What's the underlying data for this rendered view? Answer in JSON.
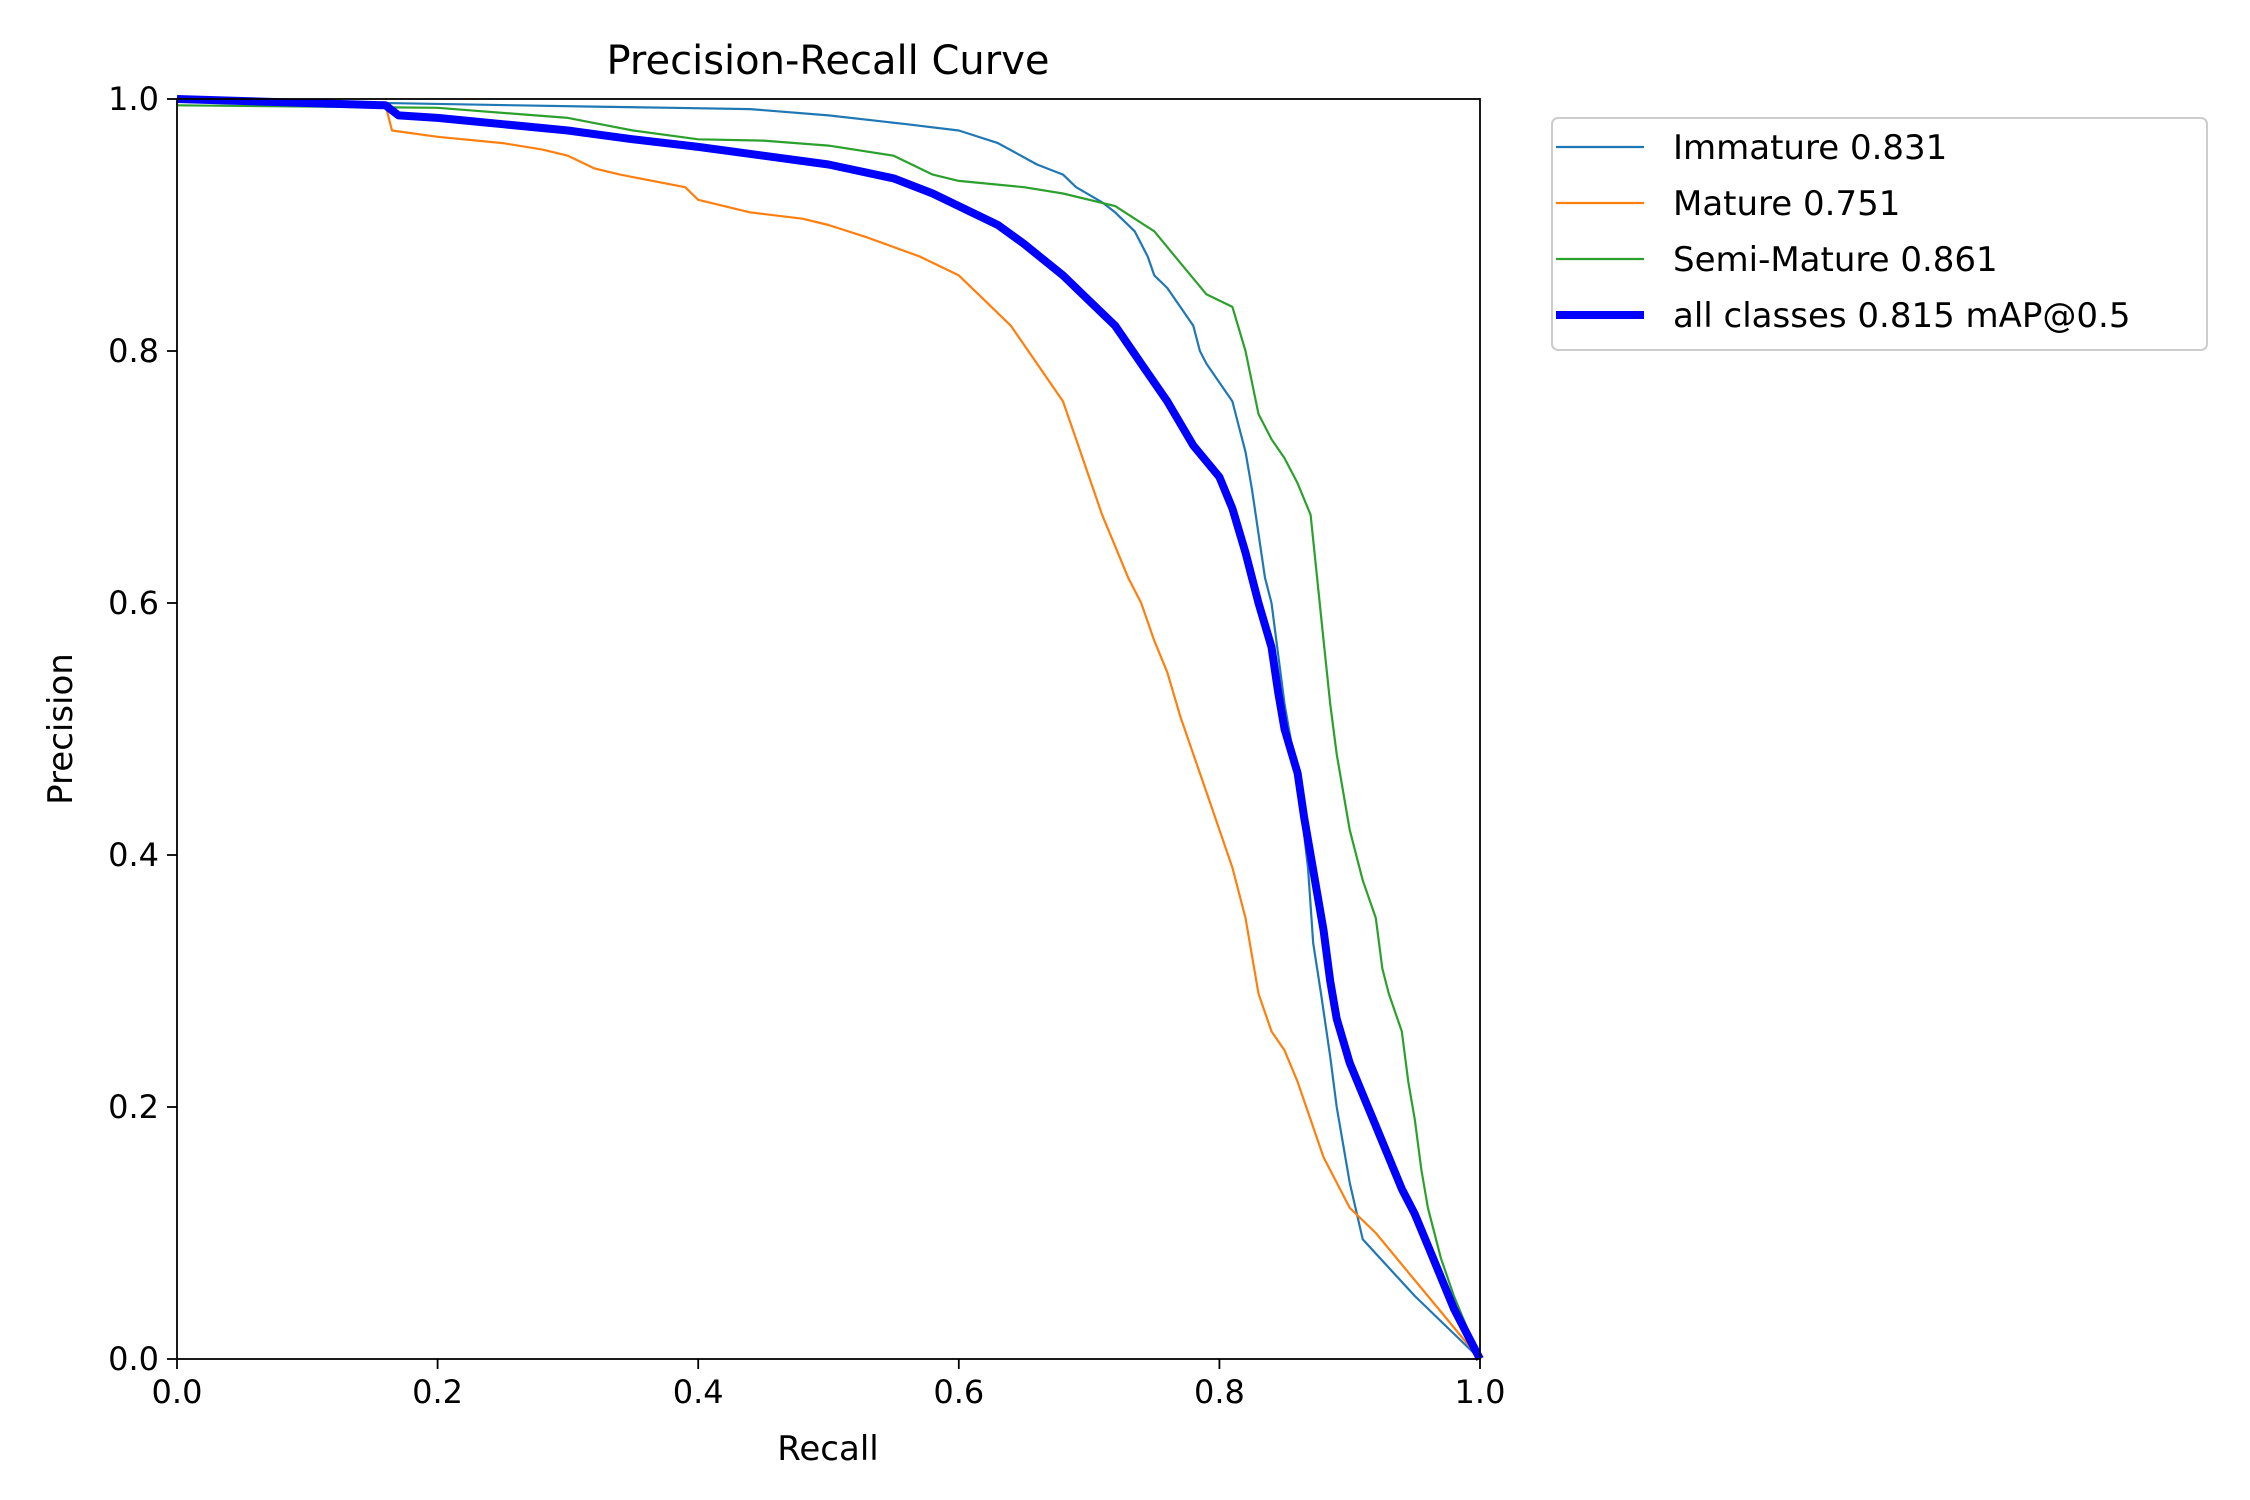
{
  "chart_data": {
    "type": "line",
    "title": "Precision-Recall Curve",
    "xlabel": "Recall",
    "ylabel": "Precision",
    "xlim": [
      0,
      1
    ],
    "ylim": [
      0,
      1
    ],
    "grid": false,
    "legend_placement": "outside upper right",
    "x_ticks": [
      "0.0",
      "0.2",
      "0.4",
      "0.6",
      "0.8",
      "1.0"
    ],
    "y_ticks": [
      "0.0",
      "0.2",
      "0.4",
      "0.6",
      "0.8",
      "1.0"
    ],
    "series": [
      {
        "name": "Immature 0.831",
        "color": "#1f77b4",
        "thick": false,
        "points": [
          [
            0,
            1.0
          ],
          [
            0.03,
            0.998
          ],
          [
            0.15,
            0.997
          ],
          [
            0.26,
            0.995
          ],
          [
            0.32,
            0.994
          ],
          [
            0.38,
            0.993
          ],
          [
            0.44,
            0.992
          ],
          [
            0.5,
            0.987
          ],
          [
            0.56,
            0.98
          ],
          [
            0.6,
            0.975
          ],
          [
            0.63,
            0.965
          ],
          [
            0.66,
            0.948
          ],
          [
            0.68,
            0.94
          ],
          [
            0.69,
            0.93
          ],
          [
            0.71,
            0.918
          ],
          [
            0.72,
            0.91
          ],
          [
            0.735,
            0.895
          ],
          [
            0.745,
            0.875
          ],
          [
            0.75,
            0.86
          ],
          [
            0.76,
            0.85
          ],
          [
            0.77,
            0.835
          ],
          [
            0.78,
            0.82
          ],
          [
            0.785,
            0.8
          ],
          [
            0.79,
            0.79
          ],
          [
            0.8,
            0.775
          ],
          [
            0.81,
            0.76
          ],
          [
            0.815,
            0.74
          ],
          [
            0.82,
            0.72
          ],
          [
            0.825,
            0.69
          ],
          [
            0.83,
            0.655
          ],
          [
            0.835,
            0.62
          ],
          [
            0.84,
            0.6
          ],
          [
            0.845,
            0.56
          ],
          [
            0.85,
            0.52
          ],
          [
            0.855,
            0.49
          ],
          [
            0.86,
            0.46
          ],
          [
            0.868,
            0.39
          ],
          [
            0.872,
            0.33
          ],
          [
            0.878,
            0.29
          ],
          [
            0.885,
            0.24
          ],
          [
            0.89,
            0.2
          ],
          [
            0.895,
            0.17
          ],
          [
            0.9,
            0.14
          ],
          [
            0.91,
            0.095
          ],
          [
            0.95,
            0.05
          ],
          [
            1.0,
            0.0
          ]
        ]
      },
      {
        "name": "Mature 0.751",
        "color": "#ff7f0e",
        "thick": false,
        "points": [
          [
            0,
            1.0
          ],
          [
            0.16,
            0.995
          ],
          [
            0.165,
            0.975
          ],
          [
            0.2,
            0.97
          ],
          [
            0.25,
            0.965
          ],
          [
            0.28,
            0.96
          ],
          [
            0.3,
            0.955
          ],
          [
            0.32,
            0.945
          ],
          [
            0.34,
            0.94
          ],
          [
            0.39,
            0.93
          ],
          [
            0.4,
            0.92
          ],
          [
            0.44,
            0.91
          ],
          [
            0.48,
            0.905
          ],
          [
            0.5,
            0.9
          ],
          [
            0.53,
            0.89
          ],
          [
            0.57,
            0.875
          ],
          [
            0.6,
            0.86
          ],
          [
            0.62,
            0.84
          ],
          [
            0.64,
            0.82
          ],
          [
            0.66,
            0.79
          ],
          [
            0.68,
            0.76
          ],
          [
            0.69,
            0.73
          ],
          [
            0.7,
            0.7
          ],
          [
            0.71,
            0.67
          ],
          [
            0.72,
            0.645
          ],
          [
            0.73,
            0.62
          ],
          [
            0.74,
            0.6
          ],
          [
            0.75,
            0.57
          ],
          [
            0.76,
            0.545
          ],
          [
            0.77,
            0.51
          ],
          [
            0.78,
            0.48
          ],
          [
            0.79,
            0.45
          ],
          [
            0.8,
            0.42
          ],
          [
            0.81,
            0.39
          ],
          [
            0.82,
            0.35
          ],
          [
            0.825,
            0.32
          ],
          [
            0.83,
            0.29
          ],
          [
            0.84,
            0.26
          ],
          [
            0.85,
            0.245
          ],
          [
            0.86,
            0.22
          ],
          [
            0.87,
            0.19
          ],
          [
            0.88,
            0.16
          ],
          [
            0.89,
            0.14
          ],
          [
            0.9,
            0.12
          ],
          [
            0.92,
            0.1
          ],
          [
            0.94,
            0.075
          ],
          [
            0.96,
            0.05
          ],
          [
            0.98,
            0.025
          ],
          [
            1.0,
            0.0
          ]
        ]
      },
      {
        "name": "Semi-Mature 0.861",
        "color": "#2ca02c",
        "thick": false,
        "points": [
          [
            0,
            0.995
          ],
          [
            0.2,
            0.993
          ],
          [
            0.3,
            0.985
          ],
          [
            0.35,
            0.975
          ],
          [
            0.4,
            0.968
          ],
          [
            0.45,
            0.967
          ],
          [
            0.5,
            0.963
          ],
          [
            0.55,
            0.955
          ],
          [
            0.58,
            0.94
          ],
          [
            0.6,
            0.935
          ],
          [
            0.65,
            0.93
          ],
          [
            0.68,
            0.925
          ],
          [
            0.72,
            0.915
          ],
          [
            0.75,
            0.895
          ],
          [
            0.77,
            0.87
          ],
          [
            0.79,
            0.845
          ],
          [
            0.81,
            0.835
          ],
          [
            0.82,
            0.8
          ],
          [
            0.83,
            0.75
          ],
          [
            0.84,
            0.73
          ],
          [
            0.85,
            0.715
          ],
          [
            0.86,
            0.695
          ],
          [
            0.87,
            0.67
          ],
          [
            0.875,
            0.62
          ],
          [
            0.88,
            0.57
          ],
          [
            0.885,
            0.52
          ],
          [
            0.89,
            0.48
          ],
          [
            0.9,
            0.42
          ],
          [
            0.91,
            0.38
          ],
          [
            0.92,
            0.35
          ],
          [
            0.925,
            0.31
          ],
          [
            0.93,
            0.29
          ],
          [
            0.94,
            0.26
          ],
          [
            0.945,
            0.22
          ],
          [
            0.95,
            0.19
          ],
          [
            0.955,
            0.15
          ],
          [
            0.96,
            0.12
          ],
          [
            0.97,
            0.08
          ],
          [
            0.98,
            0.05
          ],
          [
            1.0,
            0.0
          ]
        ]
      },
      {
        "name": "all classes 0.815 mAP@0.5",
        "color": "#0000ff",
        "thick": true,
        "points": [
          [
            0,
            1.0
          ],
          [
            0.16,
            0.995
          ],
          [
            0.17,
            0.987
          ],
          [
            0.2,
            0.985
          ],
          [
            0.25,
            0.98
          ],
          [
            0.3,
            0.975
          ],
          [
            0.35,
            0.968
          ],
          [
            0.4,
            0.962
          ],
          [
            0.45,
            0.955
          ],
          [
            0.5,
            0.948
          ],
          [
            0.55,
            0.937
          ],
          [
            0.58,
            0.925
          ],
          [
            0.6,
            0.915
          ],
          [
            0.63,
            0.9
          ],
          [
            0.65,
            0.885
          ],
          [
            0.68,
            0.86
          ],
          [
            0.7,
            0.84
          ],
          [
            0.72,
            0.82
          ],
          [
            0.74,
            0.79
          ],
          [
            0.76,
            0.76
          ],
          [
            0.78,
            0.725
          ],
          [
            0.8,
            0.7
          ],
          [
            0.81,
            0.675
          ],
          [
            0.82,
            0.64
          ],
          [
            0.83,
            0.6
          ],
          [
            0.84,
            0.565
          ],
          [
            0.845,
            0.53
          ],
          [
            0.85,
            0.5
          ],
          [
            0.86,
            0.465
          ],
          [
            0.865,
            0.43
          ],
          [
            0.87,
            0.4
          ],
          [
            0.875,
            0.37
          ],
          [
            0.88,
            0.34
          ],
          [
            0.885,
            0.3
          ],
          [
            0.89,
            0.27
          ],
          [
            0.9,
            0.235
          ],
          [
            0.91,
            0.21
          ],
          [
            0.92,
            0.185
          ],
          [
            0.93,
            0.16
          ],
          [
            0.94,
            0.135
          ],
          [
            0.95,
            0.115
          ],
          [
            0.96,
            0.09
          ],
          [
            0.97,
            0.065
          ],
          [
            0.98,
            0.04
          ],
          [
            1.0,
            0.0
          ]
        ]
      }
    ]
  }
}
